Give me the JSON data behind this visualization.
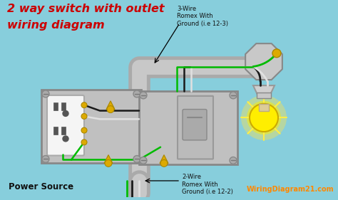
{
  "bg_color": "#87cedc",
  "title_line1": "2 way switch with outlet",
  "title_line2": "wiring diagram",
  "title_color": "#cc0000",
  "label_power": "Power Source",
  "label_3wire": "3-Wire\nRomex With\nGround (i.e 12-3)",
  "label_2wire": "2-Wire\nRomex With\nGround (i.e 12-2)",
  "label_website": "WiringDiagram21.com",
  "label_website_color": "#ff8800",
  "wire_black": "#1a1a1a",
  "wire_white": "#e0e0e0",
  "wire_green": "#00bb00",
  "wire_gray": "#999999",
  "box_face": "#c0c0c0",
  "box_edge": "#888888",
  "outlet_face": "#f5f5f5",
  "bulb_yellow": "#ffee00",
  "bulb_glow": "#fff176",
  "connector_yellow": "#ddaa00",
  "oct_face": "#c8c8c8",
  "socket_face": "#d0d0d0"
}
